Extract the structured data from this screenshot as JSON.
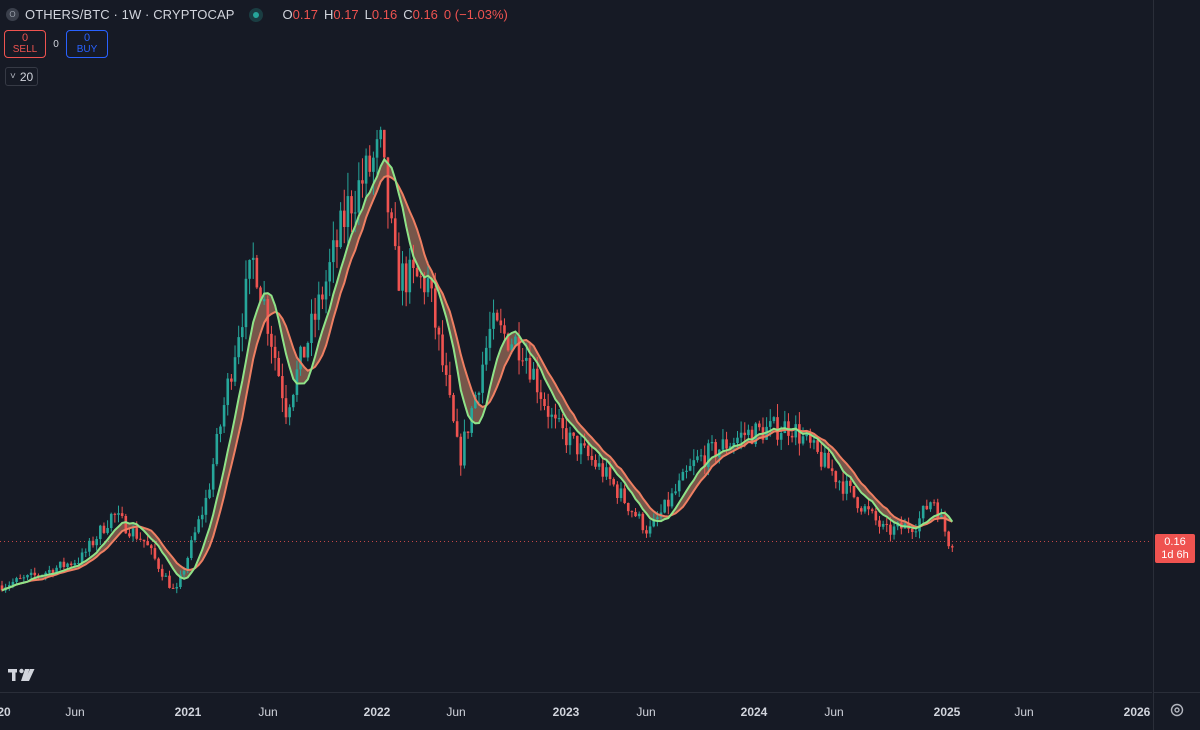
{
  "header": {
    "symbol_icon": "O",
    "title": "OTHERS/BTC · 1W · CRYPTOCAP",
    "status_icon": "market-status-dot",
    "ohlc": [
      {
        "k": "O",
        "v": "0.17"
      },
      {
        "k": "H",
        "v": "0.17"
      },
      {
        "k": "L",
        "v": "0.16"
      },
      {
        "k": "C",
        "v": "0.16"
      }
    ],
    "change": "0 (−1.03%)"
  },
  "trade": {
    "sell_value": "0",
    "sell_label": "SELL",
    "spread": "0",
    "buy_value": "0",
    "buy_label": "BUY"
  },
  "indicator": {
    "chevron": "˅",
    "value": "20"
  },
  "price_badge": {
    "price": "0.16",
    "countdown": "1d 6h"
  },
  "time_axis": [
    {
      "text": "20",
      "year": true
    },
    {
      "text": "Jun",
      "year": false
    },
    {
      "text": "2021",
      "year": true
    },
    {
      "text": "Jun",
      "year": false
    },
    {
      "text": "2022",
      "year": true
    },
    {
      "text": "Jun",
      "year": false
    },
    {
      "text": "2023",
      "year": true
    },
    {
      "text": "Jun",
      "year": false
    },
    {
      "text": "2024",
      "year": true
    },
    {
      "text": "Jun",
      "year": false
    },
    {
      "text": "2025",
      "year": true
    },
    {
      "text": "Jun",
      "year": false
    },
    {
      "text": "2026",
      "year": true
    }
  ],
  "colors": {
    "up": "#26a69a",
    "down": "#ef5350",
    "fast_ma": "#8fe388",
    "slow_ma": "#ef7f62",
    "background": "#161a25"
  },
  "chart_data": {
    "type": "candlestick",
    "interval": "1W",
    "x_range": [
      "2020-01",
      "2026-01"
    ],
    "ylim": [
      0.0,
      0.73
    ],
    "last_price": 0.16,
    "anchors": [
      {
        "date": "2020-01",
        "value": 0.11
      },
      {
        "date": "2020-03",
        "value": 0.12
      },
      {
        "date": "2020-06",
        "value": 0.14
      },
      {
        "date": "2020-08",
        "value": 0.19
      },
      {
        "date": "2020-10",
        "value": 0.16
      },
      {
        "date": "2020-12",
        "value": 0.1
      },
      {
        "date": "2021-02",
        "value": 0.21
      },
      {
        "date": "2021-04",
        "value": 0.4
      },
      {
        "date": "2021-05",
        "value": 0.48
      },
      {
        "date": "2021-07",
        "value": 0.31
      },
      {
        "date": "2021-09",
        "value": 0.42
      },
      {
        "date": "2021-11",
        "value": 0.54
      },
      {
        "date": "2022-01",
        "value": 0.6
      },
      {
        "date": "2022-02",
        "value": 0.46
      },
      {
        "date": "2022-04",
        "value": 0.45
      },
      {
        "date": "2022-06",
        "value": 0.25
      },
      {
        "date": "2022-08",
        "value": 0.4
      },
      {
        "date": "2022-10",
        "value": 0.38
      },
      {
        "date": "2022-12",
        "value": 0.29
      },
      {
        "date": "2023-03",
        "value": 0.24
      },
      {
        "date": "2023-06",
        "value": 0.17
      },
      {
        "date": "2023-09",
        "value": 0.25
      },
      {
        "date": "2023-12",
        "value": 0.28
      },
      {
        "date": "2024-03",
        "value": 0.29
      },
      {
        "date": "2024-06",
        "value": 0.23
      },
      {
        "date": "2024-09",
        "value": 0.17
      },
      {
        "date": "2024-11",
        "value": 0.18
      },
      {
        "date": "2024-12",
        "value": 0.21
      },
      {
        "date": "2025-01",
        "value": 0.16
      }
    ],
    "moving_averages": [
      {
        "color": "#8fe388"
      },
      {
        "color": "#ef7f62"
      }
    ],
    "grid": false,
    "legend": "top-left"
  }
}
